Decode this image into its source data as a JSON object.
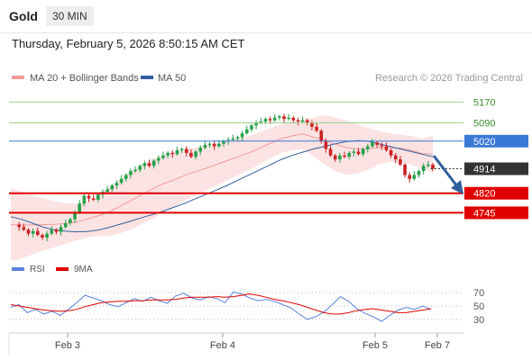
{
  "header": {
    "symbol": "Gold",
    "timeframe": "30 MIN"
  },
  "date_line": "Thursday, February 5, 2026 8:50:15 AM CET",
  "legend": {
    "bb": "MA 20 + Bollinger Bands",
    "ma50": "MA 50",
    "credit": "Research © 2026 Trading Central"
  },
  "colors": {
    "bb": "#f39a9a",
    "ma50": "#2f5f9e",
    "resistance": "#9fd08b",
    "pivot": "#3a78d6",
    "support": "#e00000",
    "price": "#333333",
    "candle_up": "#24a148",
    "candle_down": "#cc2222",
    "rsi": "#5a82d8",
    "rsi_ma": "#e00000"
  },
  "chart_data": [
    {
      "type": "candlestick",
      "x_ticks": [
        "Feb 3",
        "Feb 4",
        "Feb 5",
        "Feb 7"
      ],
      "y_min": 4560,
      "y_max": 5230,
      "levels": [
        {
          "label": "5170",
          "value": 5170,
          "kind": "resistance"
        },
        {
          "label": "5090",
          "value": 5090,
          "kind": "resistance"
        },
        {
          "label": "5020",
          "value": 5020,
          "kind": "pivot"
        },
        {
          "label": "4914",
          "value": 4914,
          "kind": "price"
        },
        {
          "label": "4820",
          "value": 4820,
          "kind": "support"
        },
        {
          "label": "4745",
          "value": 4745,
          "kind": "support"
        }
      ],
      "close": [
        4700,
        4690,
        4680,
        4665,
        4675,
        4660,
        4650,
        4665,
        4680,
        4672,
        4690,
        4705,
        4720,
        4745,
        4780,
        4810,
        4800,
        4795,
        4815,
        4825,
        4835,
        4850,
        4860,
        4875,
        4890,
        4905,
        4910,
        4925,
        4935,
        4925,
        4945,
        4955,
        4965,
        4975,
        4970,
        4985,
        4990,
        4975,
        4960,
        4980,
        4995,
        5005,
        5010,
        5000,
        5010,
        5020,
        5025,
        5030,
        5035,
        5050,
        5065,
        5080,
        5090,
        5095,
        5105,
        5100,
        5110,
        5115,
        5105,
        5110,
        5100,
        5095,
        5100,
        5090,
        5075,
        5060,
        5020,
        4990,
        4965,
        4950,
        4965,
        4960,
        4975,
        4980,
        4970,
        4990,
        5000,
        5015,
        5005,
        5000,
        4985,
        4965,
        4950,
        4930,
        4890,
        4875,
        4890,
        4905,
        4925,
        4930,
        4914
      ],
      "bb_upper": [
        4840,
        4825,
        4812,
        4800,
        4790,
        4782,
        4780,
        4790,
        4810,
        4840,
        4870,
        4900,
        4925,
        4950,
        4965,
        4975,
        4985,
        4995,
        5000,
        5010,
        5020,
        5030,
        5040,
        5055,
        5070,
        5085,
        5095,
        5105,
        5110,
        5120,
        5110,
        5100,
        5085,
        5070,
        5060,
        5050,
        5045,
        5040,
        5030,
        5040
      ],
      "bb_lower": [
        4560,
        4570,
        4585,
        4600,
        4612,
        4625,
        4638,
        4650,
        4655,
        4655,
        4665,
        4680,
        4700,
        4720,
        4745,
        4765,
        4790,
        4810,
        4830,
        4850,
        4870,
        4890,
        4910,
        4930,
        4955,
        4975,
        4985,
        4990,
        4960,
        4930,
        4905,
        4890,
        4895,
        4910,
        4930,
        4940,
        4940,
        4930,
        4915,
        4900
      ],
      "ma50": [
        4730,
        4720,
        4705,
        4690,
        4680,
        4675,
        4672,
        4673,
        4678,
        4688,
        4700,
        4712,
        4725,
        4737,
        4750,
        4765,
        4780,
        4798,
        4815,
        4832,
        4850,
        4870,
        4890,
        4910,
        4930,
        4950,
        4965,
        4978,
        4990,
        5000,
        5010,
        5018,
        5022,
        5020,
        5010,
        5000,
        4990,
        4980,
        4970,
        4960
      ]
    },
    {
      "type": "line",
      "y_ticks": [
        70,
        50,
        30
      ],
      "y_min": 15,
      "y_max": 85,
      "series": [
        {
          "name": "RSI",
          "values": [
            48,
            52,
            40,
            45,
            38,
            42,
            36,
            45,
            55,
            66,
            62,
            58,
            52,
            49,
            55,
            61,
            57,
            63,
            58,
            54,
            65,
            69,
            62,
            59,
            64,
            61,
            55,
            71,
            68,
            62,
            58,
            60,
            57,
            52,
            47,
            38,
            30,
            34,
            41,
            52,
            64,
            57,
            46,
            39,
            34,
            27,
            36,
            44,
            48,
            45,
            50,
            45
          ]
        },
        {
          "name": "9MA",
          "values": [
            52,
            50,
            48,
            46,
            44,
            43,
            42,
            43,
            45,
            49,
            52,
            55,
            56,
            57,
            57,
            58,
            58,
            59,
            59,
            59,
            60,
            62,
            63,
            63,
            63,
            64,
            63,
            64,
            66,
            68,
            66,
            63,
            60,
            58,
            55,
            52,
            48,
            44,
            40,
            38,
            38,
            40,
            43,
            45,
            46,
            44,
            42,
            40,
            40,
            42,
            44,
            46
          ]
        }
      ]
    }
  ]
}
